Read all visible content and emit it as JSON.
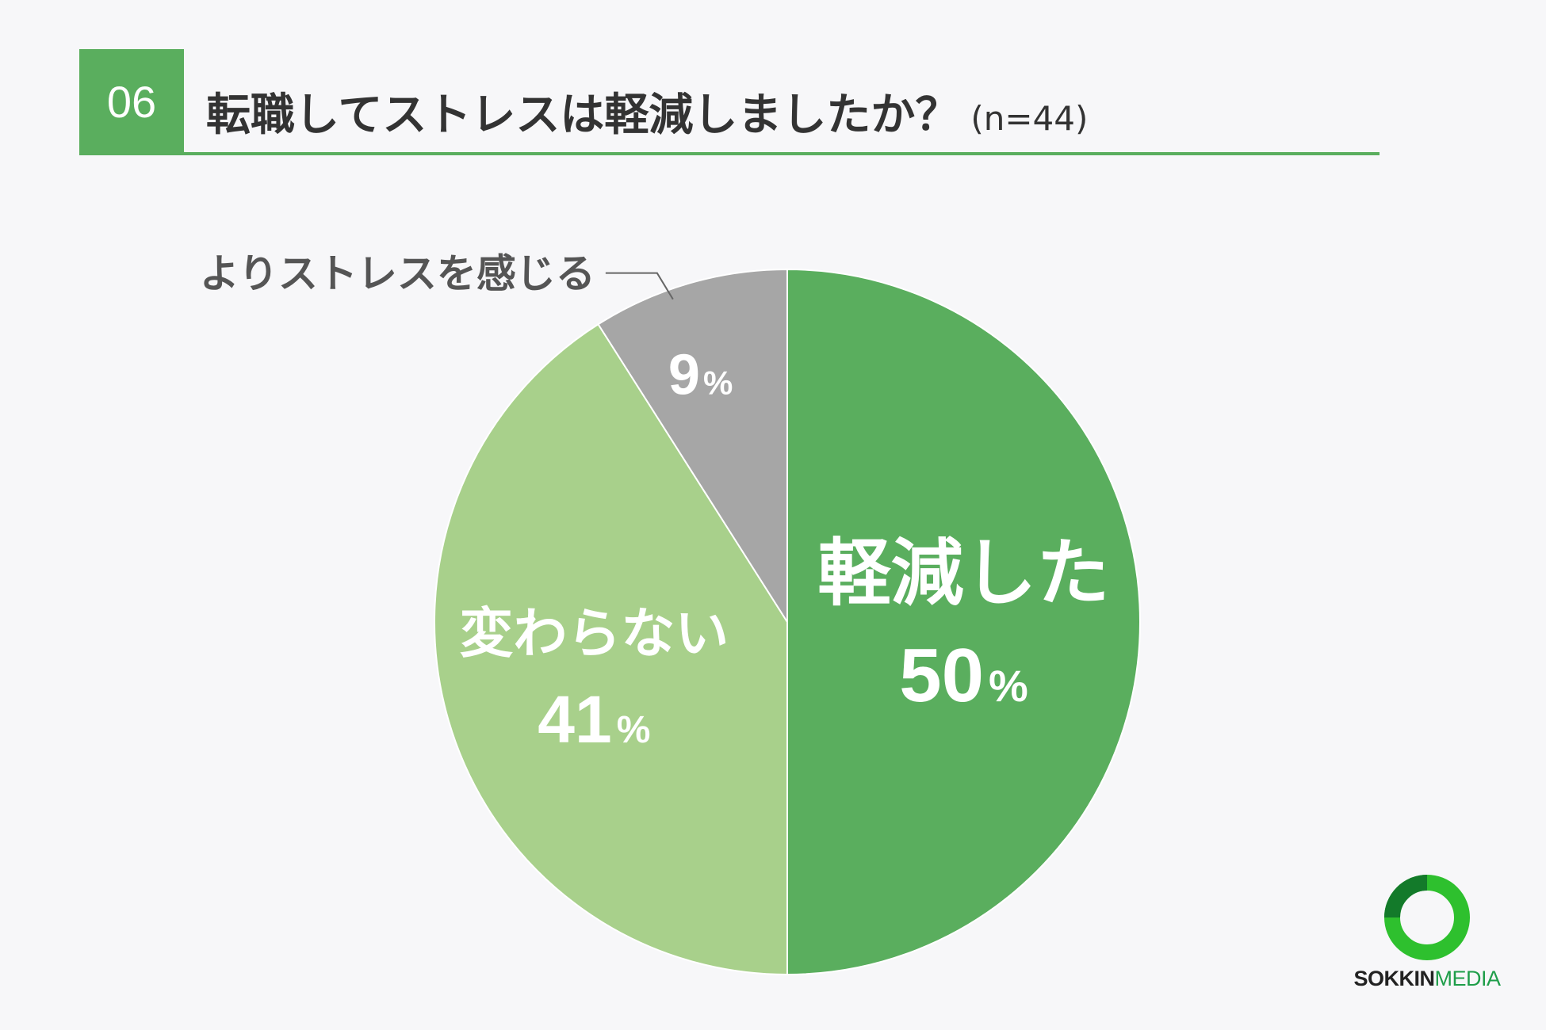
{
  "header": {
    "number": "06",
    "title": "転職してストレスは軽減しましたか？",
    "sample_size": "(n=44)"
  },
  "chart_data": {
    "type": "pie",
    "title": "転職してストレスは軽減しましたか？",
    "start_angle": "12 o'clock, clockwise",
    "slices": [
      {
        "label": "軽減した",
        "value": 50,
        "display": "50",
        "unit": "%",
        "color": "#5aae5e"
      },
      {
        "label": "変わらない",
        "value": 41,
        "display": "41",
        "unit": "%",
        "color": "#a8d08b"
      },
      {
        "label": "よりストレスを感じる",
        "value": 9,
        "display": "9",
        "unit": "%",
        "color": "#a6a6a6"
      }
    ]
  },
  "logo": {
    "text_part1": "SOKKIN",
    "text_part2": "MEDIA"
  }
}
